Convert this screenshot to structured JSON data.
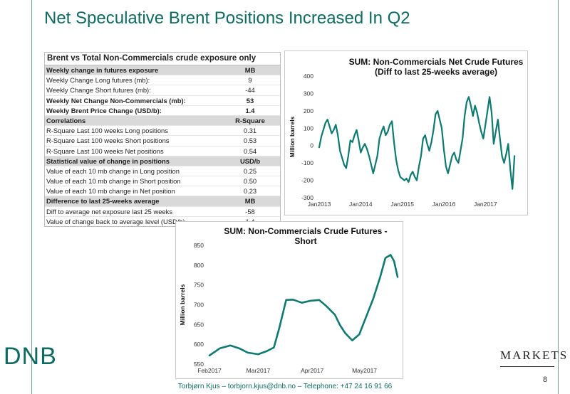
{
  "title": "Net Speculative Brent Positions Increased In Q2",
  "table": {
    "title": "Brent vs Total Non-Commercials crude exposure only",
    "rows": [
      {
        "label": "Weekly change in futures exposure",
        "value": "MB",
        "style": "hdr"
      },
      {
        "label": "Weekly Change Long futures (mb):",
        "value": "9",
        "style": ""
      },
      {
        "label": "Weekly Change Short futures (mb):",
        "value": "-44",
        "style": ""
      },
      {
        "label": "Weekly Net Change Non-Commercials (mb):",
        "value": "53",
        "style": "bold"
      },
      {
        "label": "Weekly Brent Price Change (USD/b):",
        "value": "1.4",
        "style": "bold"
      },
      {
        "label": "Correlations",
        "value": "R-Square",
        "style": "hdr"
      },
      {
        "label": "R-Square Last 100 weeks Long positions",
        "value": "0.31",
        "style": ""
      },
      {
        "label": "R-Square Last 100 weeks Short positions",
        "value": "0.53",
        "style": ""
      },
      {
        "label": "R-Square Last 100 weeks Net positions",
        "value": "0.54",
        "style": ""
      },
      {
        "label": "Statistical value of change in positions",
        "value": "USD/b",
        "style": "hdr"
      },
      {
        "label": "Value of each 10 mb change in Long position",
        "value": "0.25",
        "style": ""
      },
      {
        "label": "Value of each 10 mb change in Short position",
        "value": "0.50",
        "style": ""
      },
      {
        "label": "Value of each 10 mb change in Net position",
        "value": "0.23",
        "style": ""
      },
      {
        "label": "Difference to last 25-weeks average",
        "value": "MB",
        "style": "hdr"
      },
      {
        "label": "Diff to average net exposure last 25 weeks",
        "value": "-58",
        "style": ""
      },
      {
        "label": "Value of change back to average level (USD/b)",
        "value": "1.4",
        "style": ""
      }
    ]
  },
  "chart_data": [
    {
      "type": "line",
      "title": "SUM: Non-Commercials Net Crude Futures (Diff to last 25-weeks average)",
      "title_lines": [
        "SUM: Non-Commercials Net Crude Futures",
        "(Diff to last 25-weeks average)"
      ],
      "xlabel": "",
      "ylabel": "Million barrels",
      "ylim": [
        -300,
        400
      ],
      "yticks": [
        400,
        300,
        200,
        100,
        0,
        -100,
        -200,
        -300
      ],
      "ytick_labels": [
        "400",
        "300",
        "200",
        "100",
        "0",
        "-100",
        "-200",
        "-300"
      ],
      "xlim": [
        2013.0,
        2017.75
      ],
      "xticks": [
        2013.0,
        2014.0,
        2015.0,
        2016.0,
        2017.0
      ],
      "xtick_labels": [
        "Jan2013",
        "Jan2014",
        "Jan2015",
        "Jan2016",
        "Jan2017"
      ],
      "color": "#0e7a70",
      "series": [
        {
          "name": "",
          "x": [
            2013.0,
            2013.05,
            2013.1,
            2013.15,
            2013.2,
            2013.25,
            2013.3,
            2013.35,
            2013.4,
            2013.45,
            2013.5,
            2013.55,
            2013.6,
            2013.65,
            2013.7,
            2013.75,
            2013.8,
            2013.85,
            2013.9,
            2013.95,
            2014.0,
            2014.05,
            2014.1,
            2014.15,
            2014.2,
            2014.25,
            2014.3,
            2014.35,
            2014.4,
            2014.45,
            2014.5,
            2014.55,
            2014.6,
            2014.65,
            2014.7,
            2014.75,
            2014.8,
            2014.85,
            2014.9,
            2014.95,
            2015.0,
            2015.05,
            2015.1,
            2015.15,
            2015.2,
            2015.25,
            2015.3,
            2015.35,
            2015.4,
            2015.45,
            2015.5,
            2015.55,
            2015.6,
            2015.65,
            2015.7,
            2015.75,
            2015.8,
            2015.85,
            2015.9,
            2015.95,
            2016.0,
            2016.05,
            2016.1,
            2016.15,
            2016.2,
            2016.25,
            2016.3,
            2016.35,
            2016.4,
            2016.45,
            2016.5,
            2016.55,
            2016.6,
            2016.65,
            2016.7,
            2016.75,
            2016.8,
            2016.85,
            2016.9,
            2016.95,
            2017.0,
            2017.05,
            2017.1,
            2017.15,
            2017.2,
            2017.25,
            2017.3,
            2017.35,
            2017.4,
            2017.45,
            2017.5,
            2017.55,
            2017.6,
            2017.65,
            2017.7
          ],
          "values": [
            -10,
            50,
            90,
            130,
            150,
            110,
            70,
            90,
            120,
            60,
            -30,
            -70,
            -110,
            -130,
            -60,
            30,
            20,
            60,
            90,
            30,
            -40,
            -10,
            10,
            -20,
            -60,
            -110,
            -160,
            -110,
            -60,
            40,
            80,
            110,
            60,
            80,
            120,
            140,
            20,
            -80,
            -140,
            -180,
            -190,
            -200,
            -190,
            -210,
            -170,
            -150,
            -180,
            -200,
            -120,
            -60,
            40,
            60,
            10,
            -30,
            20,
            90,
            180,
            200,
            150,
            100,
            -20,
            -120,
            -160,
            -110,
            -60,
            -40,
            -80,
            -100,
            -30,
            40,
            170,
            250,
            280,
            230,
            170,
            230,
            190,
            130,
            80,
            40,
            120,
            200,
            280,
            190,
            10,
            80,
            150,
            40,
            -60,
            -100,
            -50,
            10,
            -140,
            -250,
            -60
          ]
        }
      ]
    },
    {
      "type": "line",
      "title": "SUM: Non-Commercials Crude Futures - Short",
      "title_lines": [
        "SUM: Non-Commercials Crude Futures -",
        "Short"
      ],
      "xlabel": "",
      "ylabel": "Million barrels",
      "ylim": [
        550,
        850
      ],
      "yticks": [
        850,
        800,
        750,
        700,
        650,
        600,
        550
      ],
      "ytick_labels": [
        "850",
        "800",
        "750",
        "700",
        "650",
        "600",
        "550"
      ],
      "xlim": [
        0,
        108
      ],
      "xticks": [
        0,
        28,
        59,
        89
      ],
      "xtick_labels": [
        "Feb2017",
        "Mar2017",
        "Apr2017",
        "May2017"
      ],
      "color": "#0e7a70",
      "series": [
        {
          "name": "",
          "x": [
            0,
            6,
            12,
            17,
            22,
            28,
            33,
            37,
            40,
            44,
            48,
            53,
            58,
            63,
            67,
            72,
            75,
            78,
            82,
            86,
            90,
            94,
            98,
            101,
            104,
            106,
            108
          ],
          "values": [
            572,
            590,
            597,
            590,
            579,
            575,
            583,
            592,
            640,
            712,
            713,
            705,
            710,
            712,
            697,
            675,
            648,
            628,
            610,
            625,
            670,
            715,
            770,
            818,
            826,
            810,
            770
          ]
        }
      ]
    }
  ],
  "logos": {
    "dnb": "DNB",
    "markets": "MARKETS"
  },
  "footer": "Torbjørn Kjus – torbjorn.kjus@dnb.no – Telephone: +47 24 16 91 66",
  "page_number": "8"
}
